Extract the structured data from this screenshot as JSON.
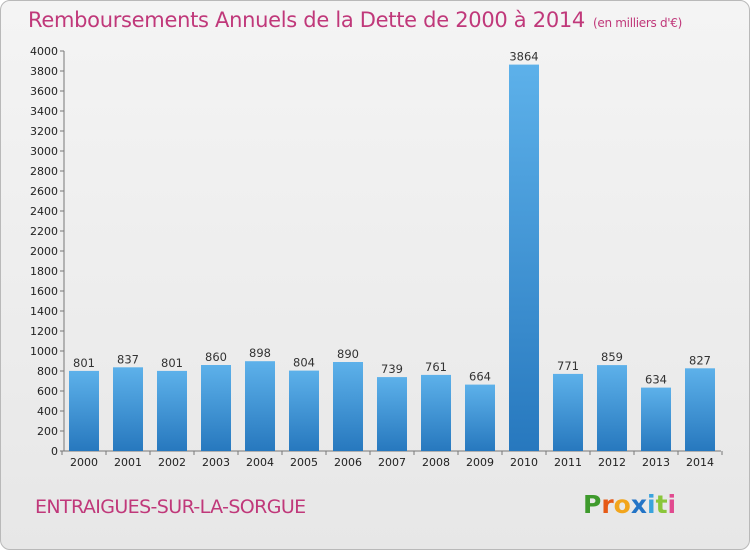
{
  "title": "Remboursements Annuels de la Dette de 2000 à 2014",
  "unit_note": "(en milliers d'€)",
  "commune": "ENTRAIGUES-SUR-LA-SORGUE",
  "logo": {
    "letters": [
      "P",
      "r",
      "o",
      "x",
      "i",
      "t",
      "i"
    ],
    "colors": [
      "#3e9a2c",
      "#e65a16",
      "#f2a51c",
      "#2374c6",
      "#3aa3dd",
      "#8ac63a",
      "#e14a8f"
    ]
  },
  "colors": {
    "accent": "#c0387a",
    "bar_top": "#5db1ea",
    "bar_bottom": "#2778be"
  },
  "chart_data": {
    "type": "bar",
    "categories": [
      "2000",
      "2001",
      "2002",
      "2003",
      "2004",
      "2005",
      "2006",
      "2007",
      "2008",
      "2009",
      "2010",
      "2011",
      "2012",
      "2013",
      "2014"
    ],
    "values": [
      801,
      837,
      801,
      860,
      898,
      804,
      890,
      739,
      761,
      664,
      3864,
      771,
      859,
      634,
      827
    ],
    "title": "Remboursements Annuels de la Dette de 2000 à 2014",
    "ylabel": "",
    "xlabel": "",
    "ylim": [
      0,
      4000
    ],
    "yticks": [
      0,
      200,
      400,
      600,
      800,
      1000,
      1200,
      1400,
      1600,
      1800,
      2000,
      2200,
      2400,
      2600,
      2800,
      3000,
      3200,
      3400,
      3600,
      3800,
      4000
    ],
    "grid": false,
    "data_labels": true
  }
}
